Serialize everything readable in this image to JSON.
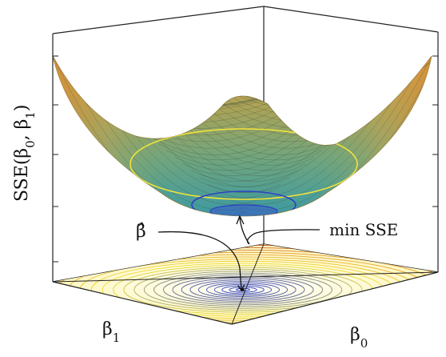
{
  "figure": {
    "z_axis_label": "SSE(β",
    "z_axis_label_sub0": "0",
    "z_axis_label_mid": ", β",
    "z_axis_label_sub1": "1",
    "z_axis_label_end": ")",
    "x_axis_label": "β",
    "x_axis_label_sub": "1",
    "y_axis_label": "β",
    "y_axis_label_sub": "0",
    "beta_hat_label": "β̂",
    "min_sse_label": "min SSE"
  },
  "colors": {
    "surface_top": "#d9822b",
    "surface_mid": "#7fa66a",
    "surface_low": "#3b9aa3",
    "contour_outer": "#c0392b",
    "contour_yellow": "#f2e33a",
    "contour_blue": "#2b3fc7",
    "box_line": "#222222"
  }
}
